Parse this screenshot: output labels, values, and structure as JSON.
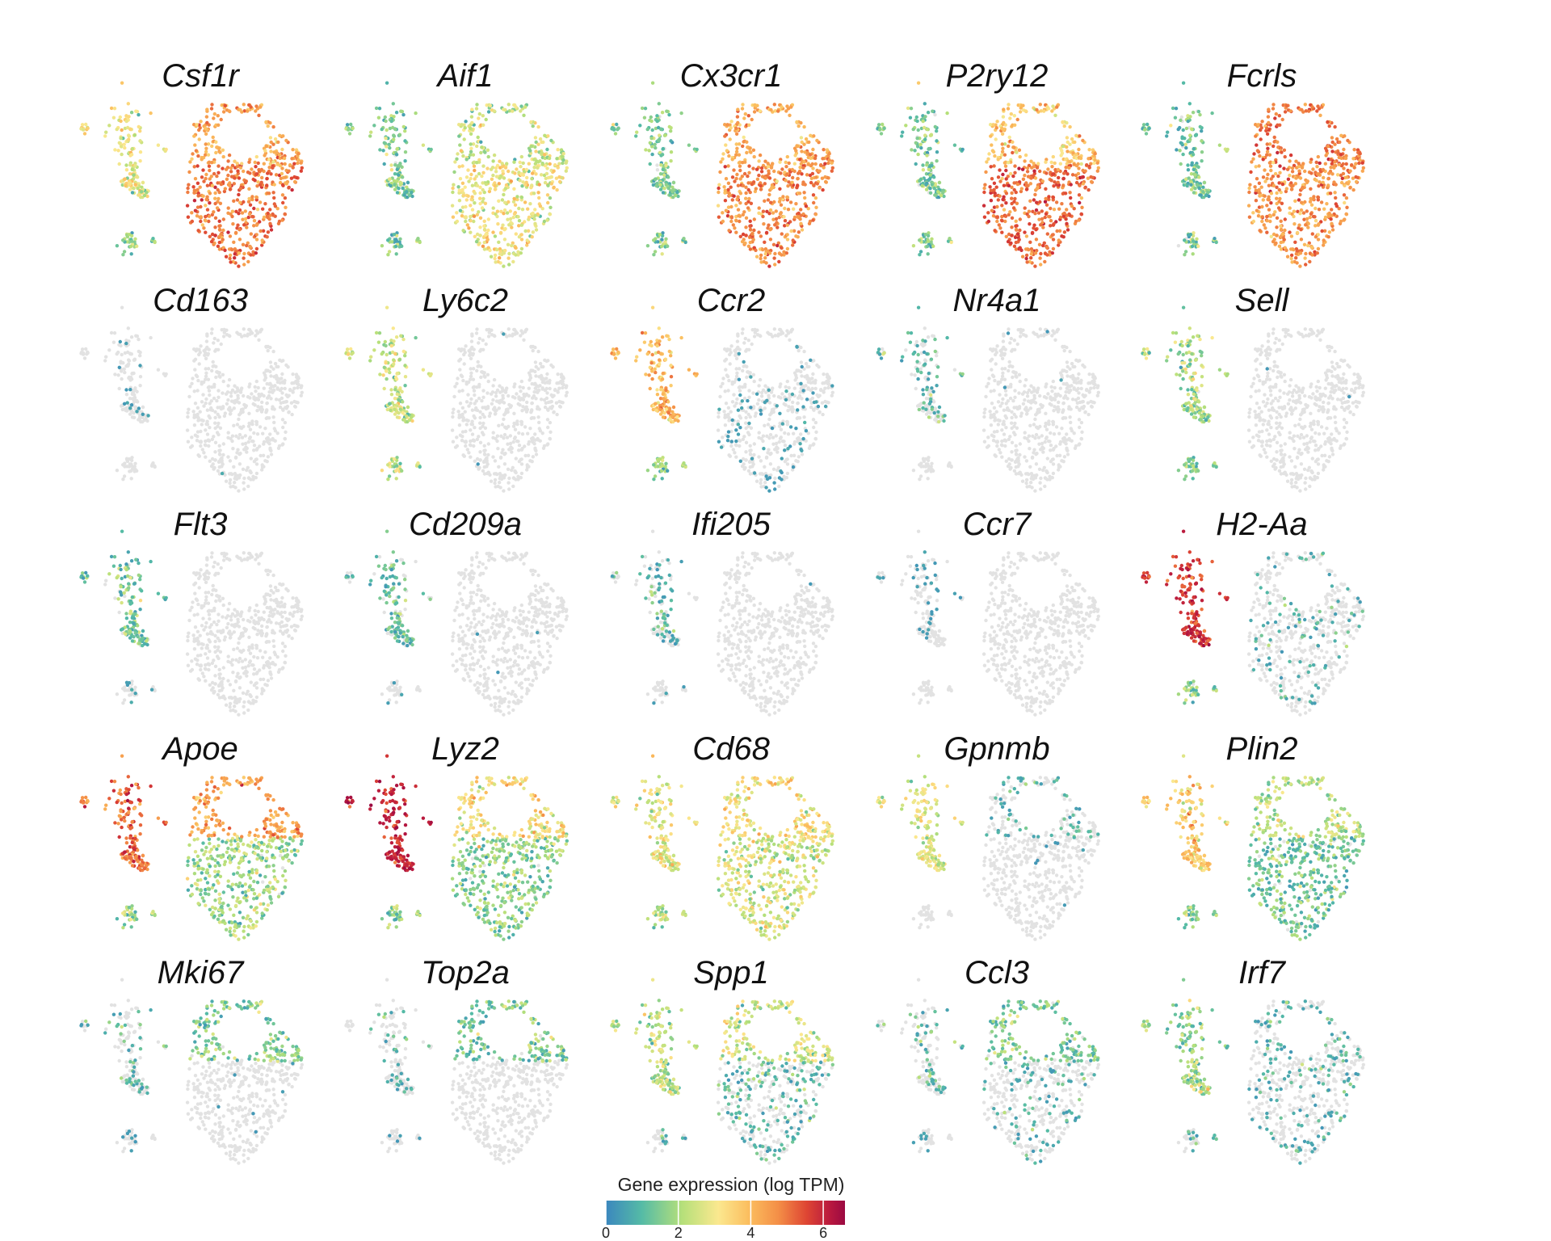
{
  "chart_data": {
    "type": "scatter",
    "description_kind": "feature-plot grid",
    "genes": [
      {
        "name": "Csf1r",
        "profile": {
          "main_bottom": 4.3,
          "main_top": 3.7,
          "left": 2.3,
          "small": 1.5
        }
      },
      {
        "name": "Aif1",
        "profile": {
          "main_bottom": 2.4,
          "main_top": 1.9,
          "left": 1.2,
          "small": 1.2
        }
      },
      {
        "name": "Cx3cr1",
        "profile": {
          "main_bottom": 4.1,
          "main_top": 3.6,
          "left": 1.2,
          "small": 1.2
        }
      },
      {
        "name": "P2ry12",
        "profile": {
          "main_bottom": 4.5,
          "main_top": 3.2,
          "left": 1.1,
          "small": 1.2
        }
      },
      {
        "name": "Fcrls",
        "profile": {
          "main_bottom": 4.0,
          "main_top": 4.3,
          "left": 1.1,
          "small": 1.1
        }
      },
      {
        "name": "Cd163",
        "profile": {
          "main_bottom": 0,
          "main_top": 0,
          "left": 0.2,
          "small": 0.1
        }
      },
      {
        "name": "Ly6c2",
        "profile": {
          "main_bottom": 0,
          "main_top": 0,
          "left": 2.0,
          "small": 1.8
        }
      },
      {
        "name": "Ccr2",
        "profile": {
          "main_bottom": 0.3,
          "main_top": 0.2,
          "left": 3.3,
          "small": 1.5
        }
      },
      {
        "name": "Nr4a1",
        "profile": {
          "main_bottom": 0,
          "main_top": 0.1,
          "left": 0.6,
          "small": 0.2
        }
      },
      {
        "name": "Sell",
        "profile": {
          "main_bottom": 0,
          "main_top": 0,
          "left": 1.6,
          "small": 1.2
        }
      },
      {
        "name": "Flt3",
        "profile": {
          "main_bottom": 0.05,
          "main_top": 0,
          "left": 1.0,
          "small": 0.3
        }
      },
      {
        "name": "Cd209a",
        "profile": {
          "main_bottom": 0.05,
          "main_top": 0,
          "left": 0.8,
          "small": 0.3
        }
      },
      {
        "name": "Ifi205",
        "profile": {
          "main_bottom": 0,
          "main_top": 0,
          "left": 0.6,
          "small": 0.2
        }
      },
      {
        "name": "Ccr7",
        "profile": {
          "main_bottom": 0,
          "main_top": 0,
          "left": 0.3,
          "small": 0.2
        }
      },
      {
        "name": "H2-Aa",
        "profile": {
          "main_bottom": 0.4,
          "main_top": 0.4,
          "left": 5.2,
          "small": 1.3
        }
      },
      {
        "name": "Apoe",
        "profile": {
          "main_bottom": 1.5,
          "main_top": 3.8,
          "left": 4.5,
          "small": 1.5
        }
      },
      {
        "name": "Lyz2",
        "profile": {
          "main_bottom": 1.3,
          "main_top": 2.6,
          "left": 5.5,
          "small": 1.2
        }
      },
      {
        "name": "Cd68",
        "profile": {
          "main_bottom": 2.1,
          "main_top": 2.6,
          "left": 2.3,
          "small": 1.6
        }
      },
      {
        "name": "Gpnmb",
        "profile": {
          "main_bottom": 0.1,
          "main_top": 0.5,
          "left": 2.2,
          "small": 0.2
        }
      },
      {
        "name": "Plin2",
        "profile": {
          "main_bottom": 1.0,
          "main_top": 1.8,
          "left": 2.9,
          "small": 1.2
        }
      },
      {
        "name": "Mki67",
        "profile": {
          "main_bottom": 0.1,
          "main_top": 1.2,
          "left": 0.6,
          "small": 0.3
        }
      },
      {
        "name": "Top2a",
        "profile": {
          "main_bottom": 0.05,
          "main_top": 1.1,
          "left": 0.4,
          "small": 0.3
        }
      },
      {
        "name": "Spp1",
        "profile": {
          "main_bottom": 0.6,
          "main_top": 2.0,
          "left": 1.8,
          "small": 0.6
        }
      },
      {
        "name": "Ccl3",
        "profile": {
          "main_bottom": 0.4,
          "main_top": 1.1,
          "left": 0.5,
          "small": 0.3
        }
      },
      {
        "name": "Irf7",
        "profile": {
          "main_bottom": 0.4,
          "main_top": 0.6,
          "left": 1.4,
          "small": 0.6
        }
      }
    ],
    "color_scale": {
      "title": "Gene expression (log TPM)",
      "min": 0,
      "max": 6.6,
      "ticks": [
        0,
        2,
        4,
        6
      ],
      "tick_labels": [
        "0",
        "2",
        "4",
        "6"
      ],
      "low_color": "#e2e2e2",
      "stops": [
        "#3b87be",
        "#55bba6",
        "#b6e07a",
        "#fbe88f",
        "#fbbd5e",
        "#f48f47",
        "#de4533",
        "#b8183f",
        "#9b0a42"
      ]
    }
  }
}
